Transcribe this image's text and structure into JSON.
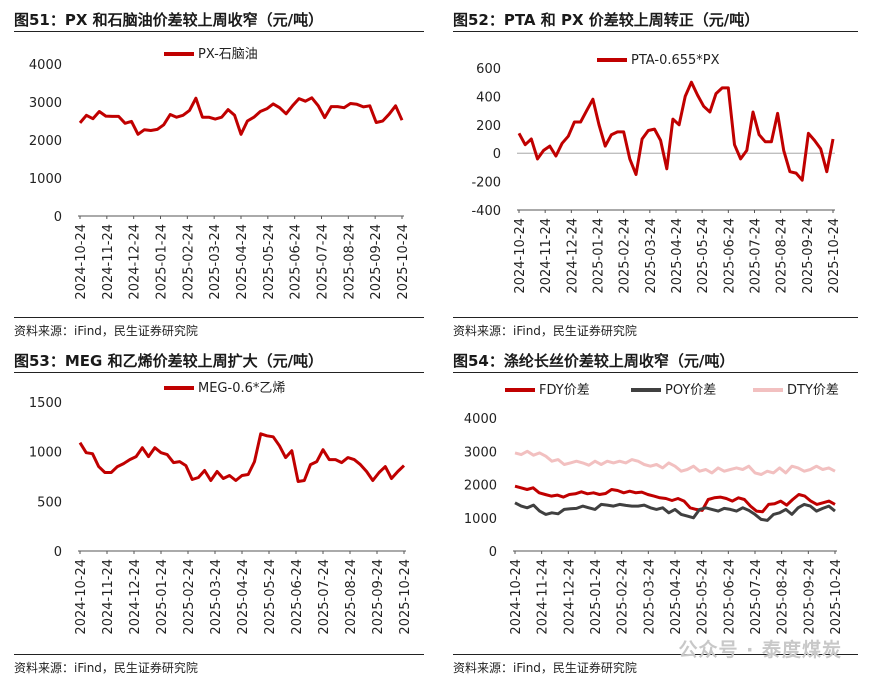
{
  "charts": [
    {
      "title": "图51：PX 和石脑油价差较上周收窄（元/吨）",
      "source": "资料来源：iFind，民生证券研究院"
    },
    {
      "title": "图52：PTA 和 PX 价差较上周转正（元/吨）",
      "source": "资料来源：iFind，民生证券研究院"
    },
    {
      "title": "图53：MEG 和乙烯价差较上周扩大（元/吨）",
      "source": "资料来源：iFind，民生证券研究院"
    },
    {
      "title": "图54：涤纶长丝价差较上周收窄（元/吨）",
      "source": "资料来源：iFind，民生证券研究院"
    }
  ],
  "watermark": "公众号 · 泰度煤炭",
  "chart_data": [
    {
      "type": "line",
      "title": "图51：PX 和石脑油价差较上周收窄（元/吨）",
      "ylim": [
        0,
        4000
      ],
      "yticks": [
        0,
        1000,
        2000,
        3000,
        4000
      ],
      "xticks": [
        "2024-10-24",
        "2024-11-24",
        "2024-12-24",
        "2025-01-24",
        "2025-02-24",
        "2025-03-24",
        "2025-04-24",
        "2025-05-24",
        "2025-06-24",
        "2025-07-24",
        "2025-08-24",
        "2025-09-24",
        "2025-10-24"
      ],
      "series": [
        {
          "name": "PX-石脑油",
          "color": "#c00000",
          "values": [
            2450,
            2650,
            2560,
            2750,
            2630,
            2620,
            2620,
            2440,
            2490,
            2150,
            2270,
            2250,
            2280,
            2400,
            2670,
            2600,
            2650,
            2780,
            3100,
            2600,
            2600,
            2550,
            2600,
            2800,
            2650,
            2150,
            2500,
            2600,
            2750,
            2820,
            2950,
            2850,
            2690,
            2900,
            3090,
            3020,
            3110,
            2900,
            2590,
            2880,
            2880,
            2850,
            2960,
            2940,
            2870,
            2900,
            2460,
            2500,
            2680,
            2900,
            2520
          ]
        }
      ]
    },
    {
      "type": "line",
      "title": "图52：PTA 和 PX 价差较上周转正（元/吨）",
      "ylim": [
        -400,
        600
      ],
      "yticks": [
        -400,
        -200,
        0,
        200,
        400,
        600
      ],
      "xticks": [
        "2024-10-24",
        "2024-11-24",
        "2024-12-24",
        "2025-01-24",
        "2025-02-24",
        "2025-03-24",
        "2025-04-24",
        "2025-05-24",
        "2025-06-24",
        "2025-07-24",
        "2025-08-24",
        "2025-09-24",
        "2025-10-24"
      ],
      "series": [
        {
          "name": "PTA-0.655*PX",
          "color": "#c00000",
          "values": [
            140,
            60,
            100,
            -40,
            20,
            50,
            -20,
            70,
            120,
            220,
            220,
            300,
            380,
            200,
            50,
            130,
            150,
            150,
            -40,
            -150,
            100,
            160,
            170,
            90,
            -110,
            240,
            200,
            400,
            500,
            410,
            330,
            290,
            420,
            460,
            460,
            60,
            -40,
            20,
            290,
            130,
            80,
            80,
            280,
            20,
            -130,
            -140,
            -190,
            140,
            90,
            30,
            -130,
            100
          ]
        }
      ]
    },
    {
      "type": "line",
      "title": "图53：MEG 和乙烯价差较上周扩大（元/吨）",
      "ylim": [
        0,
        1500
      ],
      "yticks": [
        0,
        500,
        1000,
        1500
      ],
      "xticks": [
        "2024-10-24",
        "2024-11-24",
        "2024-12-24",
        "2025-01-24",
        "2025-02-24",
        "2025-03-24",
        "2025-04-24",
        "2025-05-24",
        "2025-06-24",
        "2025-07-24",
        "2025-08-24",
        "2025-09-24",
        "2025-10-24"
      ],
      "series": [
        {
          "name": "MEG-0.6*乙烯",
          "color": "#c00000",
          "values": [
            1090,
            990,
            980,
            850,
            790,
            790,
            850,
            880,
            920,
            950,
            1040,
            950,
            1040,
            990,
            970,
            890,
            900,
            860,
            720,
            740,
            810,
            710,
            800,
            730,
            760,
            710,
            760,
            770,
            900,
            1180,
            1160,
            1150,
            1060,
            940,
            1010,
            700,
            710,
            870,
            900,
            1020,
            920,
            920,
            890,
            940,
            920,
            870,
            800,
            710,
            790,
            850,
            730,
            800,
            860
          ]
        }
      ]
    },
    {
      "type": "line",
      "title": "图54：涤纶长丝价差较上周收窄（元/吨）",
      "ylim": [
        0,
        4000
      ],
      "yticks": [
        0,
        1000,
        2000,
        3000,
        4000
      ],
      "xticks": [
        "2024-10-24",
        "2024-11-24",
        "2024-12-24",
        "2025-01-24",
        "2025-02-24",
        "2025-03-24",
        "2025-04-24",
        "2025-05-24",
        "2025-06-24",
        "2025-07-24",
        "2025-08-24",
        "2025-09-24",
        "2025-10-24"
      ],
      "series": [
        {
          "name": "FDY价差",
          "color": "#c00000",
          "values": [
            1950,
            1900,
            1850,
            1900,
            1750,
            1700,
            1650,
            1680,
            1620,
            1700,
            1720,
            1780,
            1720,
            1750,
            1700,
            1730,
            1850,
            1820,
            1750,
            1800,
            1750,
            1770,
            1700,
            1650,
            1600,
            1580,
            1520,
            1580,
            1500,
            1300,
            1250,
            1220,
            1550,
            1600,
            1620,
            1580,
            1500,
            1600,
            1550,
            1350,
            1200,
            1180,
            1400,
            1420,
            1500,
            1380,
            1550,
            1700,
            1650,
            1500,
            1400,
            1450,
            1500,
            1400
          ]
        },
        {
          "name": "POY价差",
          "color": "#404040",
          "values": [
            1450,
            1350,
            1300,
            1380,
            1200,
            1100,
            1150,
            1120,
            1250,
            1270,
            1280,
            1350,
            1300,
            1250,
            1400,
            1380,
            1350,
            1400,
            1370,
            1350,
            1350,
            1380,
            1300,
            1250,
            1300,
            1150,
            1250,
            1100,
            1050,
            1000,
            1250,
            1300,
            1250,
            1200,
            1280,
            1250,
            1200,
            1300,
            1220,
            1100,
            950,
            920,
            1100,
            1150,
            1250,
            1100,
            1300,
            1400,
            1350,
            1200,
            1280,
            1350,
            1200
          ]
        },
        {
          "name": "DTY价差",
          "color": "#f2c0c0",
          "values": [
            2950,
            2900,
            3000,
            2880,
            2950,
            2850,
            2700,
            2750,
            2600,
            2650,
            2700,
            2650,
            2580,
            2700,
            2600,
            2700,
            2650,
            2700,
            2650,
            2750,
            2700,
            2600,
            2550,
            2600,
            2500,
            2650,
            2550,
            2400,
            2450,
            2550,
            2400,
            2450,
            2350,
            2500,
            2400,
            2450,
            2500,
            2450,
            2550,
            2350,
            2300,
            2400,
            2350,
            2500,
            2350,
            2550,
            2500,
            2400,
            2450,
            2550,
            2450,
            2500,
            2400
          ]
        }
      ]
    }
  ]
}
